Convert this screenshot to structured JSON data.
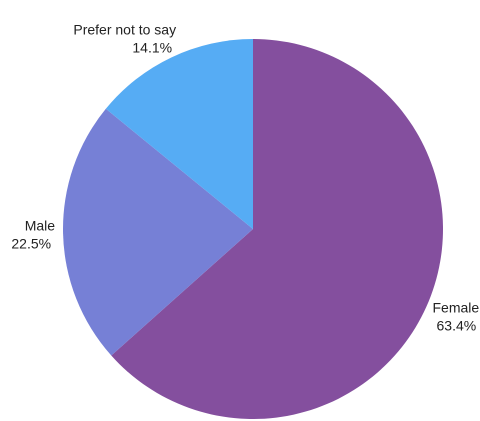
{
  "chart_data": {
    "type": "pie",
    "start_angle_deg": 0,
    "direction": "clockwise",
    "slices": [
      {
        "label": "Female",
        "value": 63.4,
        "value_text": "63.4%",
        "color": "#844f9e"
      },
      {
        "label": "Male",
        "value": 22.5,
        "value_text": "22.5%",
        "color": "#7680d6"
      },
      {
        "label": "Prefer not to say",
        "value": 14.1,
        "value_text": "14.1%",
        "color": "#56acf4"
      }
    ],
    "legend": "none"
  }
}
